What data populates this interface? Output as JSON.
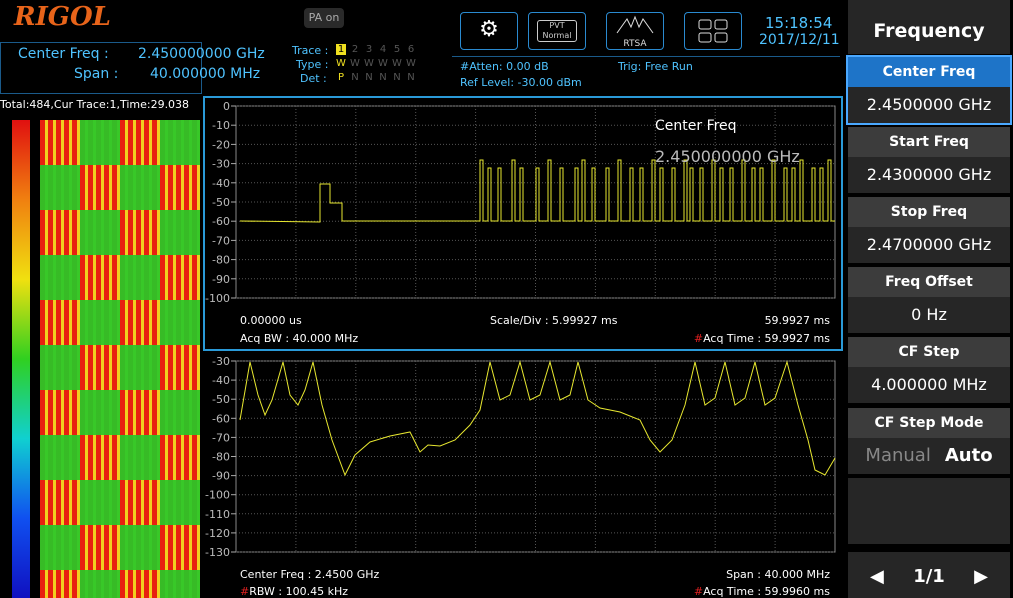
{
  "header": {
    "logo": "RIGOL",
    "center_freq_label": "Center Freq :",
    "center_freq_value": "2.450000000 GHz",
    "span_label": "Span :",
    "span_value": "40.000000 MHz",
    "trace_label": "Trace :",
    "trace_numbers": [
      "1",
      "2",
      "3",
      "4",
      "5",
      "6"
    ],
    "type_label": "Type :",
    "type_values": [
      "W",
      "W",
      "W",
      "W",
      "W",
      "W"
    ],
    "det_label": "Det :",
    "det_values": [
      "P",
      "N",
      "N",
      "N",
      "N",
      "N"
    ],
    "pa_button": "PA on",
    "pvt_label": "PVT",
    "pvt_mode": "Normal",
    "rtsa_label": "RTSA",
    "atten": "#Atten: 0.00 dB",
    "ref_level": "Ref Level: -30.00 dBm",
    "trig": "Trig: Free Run",
    "time": "15:18:54",
    "date": "2017/12/11"
  },
  "waterfall": {
    "status": "Total:484,Cur Trace:1,Time:29.038"
  },
  "top_plot": {
    "yticks": [
      "0",
      "-10",
      "-20",
      "-30",
      "-40",
      "-50",
      "-60",
      "-70",
      "-80",
      "-90",
      "-100"
    ],
    "marker_label": "Center Freq",
    "marker_value": "2.450000000 GHz",
    "start_time": "0.00000 us",
    "scale": "Scale/Div : 5.99927 ms",
    "end_time": "59.9927 ms",
    "acq_bw": "Acq BW : 40.000 MHz",
    "acq_time_flag": "#",
    "acq_time": "Acq Time : 59.9927 ms"
  },
  "bottom_plot": {
    "yticks": [
      "-30",
      "-40",
      "-50",
      "-60",
      "-70",
      "-80",
      "-90",
      "-100",
      "-110",
      "-120",
      "-130"
    ],
    "center": "Center Freq : 2.4500 GHz",
    "span": "Span : 40.000 MHz",
    "rbw_flag": "#",
    "rbw": "RBW : 100.45 kHz",
    "acq_time_flag": "#",
    "acq_time": "Acq Time : 59.9960 ms"
  },
  "menu": {
    "title": "Frequency",
    "items": [
      {
        "label": "Center Freq",
        "value": "2.4500000 GHz"
      },
      {
        "label": "Start Freq",
        "value": "2.4300000 GHz"
      },
      {
        "label": "Stop Freq",
        "value": "2.4700000 GHz"
      },
      {
        "label": "Freq Offset",
        "value": "0 Hz"
      },
      {
        "label": "CF Step",
        "value": "4.000000 MHz"
      }
    ],
    "mode_label": "CF Step Mode",
    "mode_options": [
      "Manual",
      "Auto"
    ],
    "page": "1/1"
  }
}
